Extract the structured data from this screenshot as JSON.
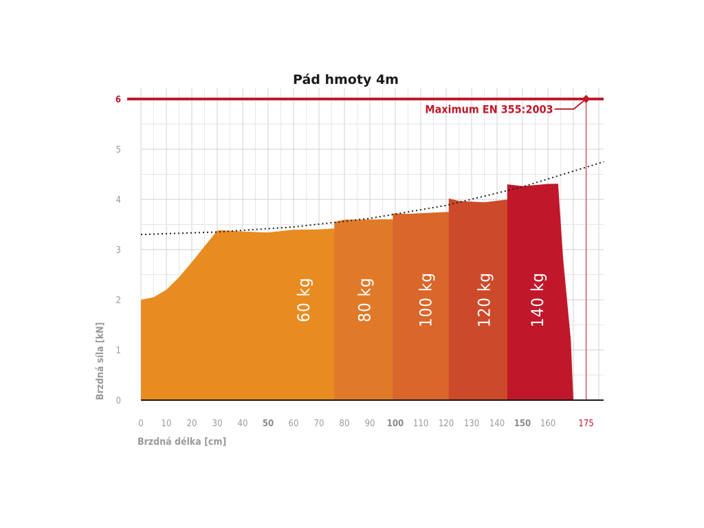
{
  "chart_data": {
    "type": "area",
    "title": "Pád hmoty 4m",
    "xlabel": "Brzdná délka [cm]",
    "ylabel": "Brzdná síla [kN]",
    "xlim": [
      0,
      182
    ],
    "ylim": [
      0,
      6.3
    ],
    "x_ticks": [
      "0",
      "10",
      "20",
      "30",
      "40",
      "50",
      "60",
      "70",
      "80",
      "90",
      "100",
      "110",
      "120",
      "130",
      "140",
      "150",
      "160"
    ],
    "x_ticks_bold": [
      "50",
      "100",
      "150"
    ],
    "x_limit_tick": "175",
    "y_ticks": [
      "0",
      "1",
      "2",
      "3",
      "4",
      "5"
    ],
    "limit_line": {
      "label": "Maximum EN 355:2003",
      "tick": "6",
      "y": 6,
      "x_marker": 175,
      "color": "#c0182a"
    },
    "trend_curve": {
      "style": "dotted",
      "points": [
        [
          0,
          3.3
        ],
        [
          30,
          3.35
        ],
        [
          60,
          3.45
        ],
        [
          90,
          3.62
        ],
        [
          120,
          3.88
        ],
        [
          150,
          4.25
        ],
        [
          182,
          4.75
        ]
      ]
    },
    "series": [
      {
        "name": "60 kg",
        "label": "60 kg",
        "color": "#e88c22",
        "points": [
          [
            0,
            2.0
          ],
          [
            5,
            2.05
          ],
          [
            10,
            2.2
          ],
          [
            15,
            2.45
          ],
          [
            20,
            2.75
          ],
          [
            25,
            3.05
          ],
          [
            30,
            3.38
          ],
          [
            32,
            3.4
          ],
          [
            40,
            3.35
          ],
          [
            50,
            3.35
          ],
          [
            60,
            3.38
          ],
          [
            70,
            3.4
          ],
          [
            76,
            3.42
          ],
          [
            78,
            2.4
          ],
          [
            81,
            0
          ]
        ]
      },
      {
        "name": "80 kg",
        "label": "80 kg",
        "color": "#e07a28",
        "points": [
          [
            76,
            3.55
          ],
          [
            80,
            3.58
          ],
          [
            90,
            3.6
          ],
          [
            99,
            3.62
          ],
          [
            100,
            2.5
          ],
          [
            103,
            0
          ],
          [
            78,
            0
          ],
          [
            76,
            0
          ]
        ]
      },
      {
        "name": "100 kg",
        "label": "100 kg",
        "color": "#d9662a",
        "points": [
          [
            99,
            3.72
          ],
          [
            105,
            3.72
          ],
          [
            115,
            3.72
          ],
          [
            121,
            3.75
          ],
          [
            122,
            2.6
          ],
          [
            126,
            0
          ],
          [
            103,
            0
          ],
          [
            99,
            0
          ]
        ]
      },
      {
        "name": "120 kg",
        "label": "120 kg",
        "color": "#cc4a2a",
        "points": [
          [
            121,
            4.02
          ],
          [
            125,
            3.96
          ],
          [
            135,
            3.95
          ],
          [
            144,
            3.98
          ],
          [
            145,
            2.8
          ],
          [
            149,
            0
          ],
          [
            126,
            0
          ],
          [
            121,
            0
          ]
        ]
      },
      {
        "name": "140 kg",
        "label": "140 kg",
        "color": "#c0182a",
        "points": [
          [
            144,
            4.3
          ],
          [
            150,
            4.28
          ],
          [
            160,
            4.3
          ],
          [
            164,
            4.32
          ],
          [
            166,
            2.8
          ],
          [
            169,
            1.2
          ],
          [
            170,
            0
          ],
          [
            149,
            0
          ],
          [
            144,
            0
          ]
        ]
      }
    ],
    "grid": true
  }
}
